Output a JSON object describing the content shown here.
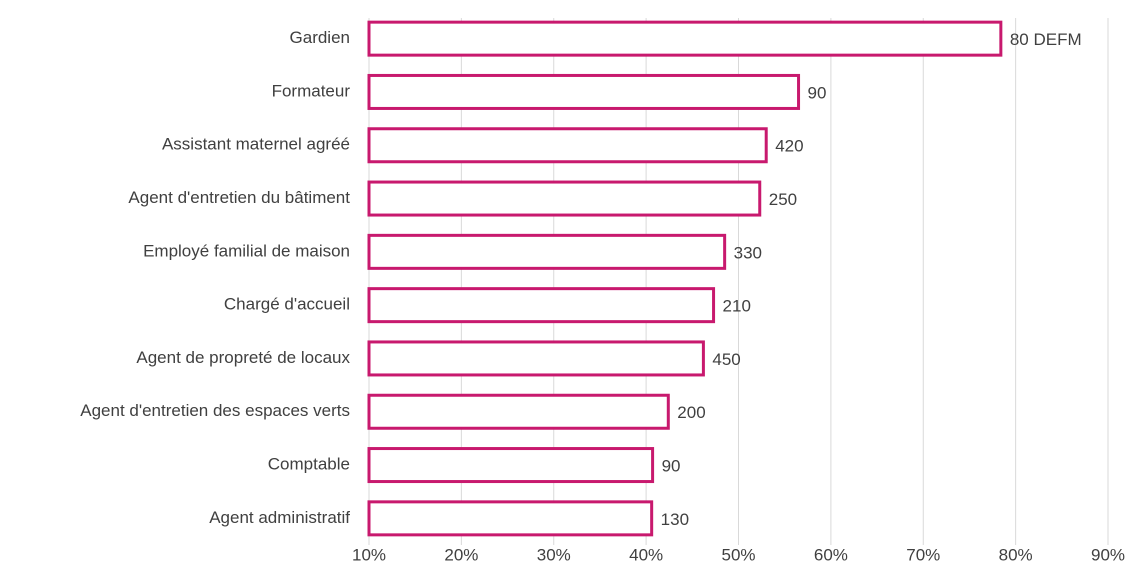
{
  "chart_data": {
    "type": "barh",
    "categories": [
      "Gardien",
      "Formateur",
      "Assistant maternel agréé",
      "Agent d'entretien du bâtiment",
      "Employé familial de maison",
      "Chargé d'accueil",
      "Agent de propreté de locaux",
      "Agent d'entretien des espaces verts",
      "Comptable",
      "Agent administratif"
    ],
    "values": [
      78.4,
      56.5,
      53.0,
      52.3,
      48.5,
      47.3,
      46.2,
      42.4,
      40.7,
      40.6
    ],
    "labels": [
      "80 DEFM",
      "90",
      "420",
      "250",
      "330",
      "210",
      "450",
      "200",
      "90",
      "130"
    ],
    "color": "#c8196e",
    "xlim": [
      10,
      90
    ],
    "xticks": [
      {
        "value": 10,
        "label": "10%"
      },
      {
        "value": 20,
        "label": "20%"
      },
      {
        "value": 30,
        "label": "30%"
      },
      {
        "value": 40,
        "label": "40%"
      },
      {
        "value": 50,
        "label": "50%"
      },
      {
        "value": 60,
        "label": "60%"
      },
      {
        "value": 70,
        "label": "70%"
      },
      {
        "value": 80,
        "label": "80%"
      },
      {
        "value": 90,
        "label": "90%"
      }
    ],
    "grid": true
  }
}
